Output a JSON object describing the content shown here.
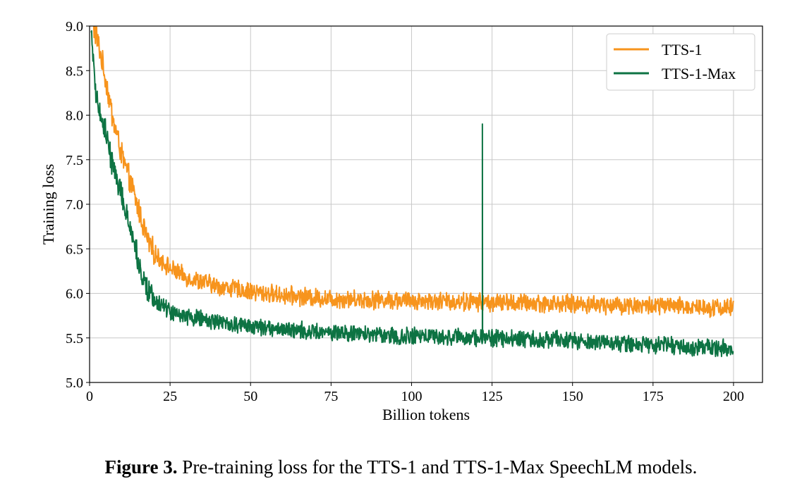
{
  "caption": {
    "label": "Figure 3.",
    "text": "Pre-training loss for the TTS-1 and TTS-1-Max SpeechLM models."
  },
  "chart_data": {
    "type": "line",
    "xlabel": "Billion tokens",
    "ylabel": "Training loss",
    "xlim": [
      0,
      209
    ],
    "ylim": [
      5.0,
      9.0
    ],
    "xticks": [
      0,
      25,
      50,
      75,
      100,
      125,
      150,
      175,
      200
    ],
    "yticks": [
      5.0,
      5.5,
      6.0,
      6.5,
      7.0,
      7.5,
      8.0,
      8.5,
      9.0
    ],
    "xtick_labels": [
      "0",
      "25",
      "50",
      "75",
      "100",
      "125",
      "150",
      "175",
      "200"
    ],
    "ytick_labels": [
      "5.0",
      "5.5",
      "6.0",
      "6.5",
      "7.0",
      "7.5",
      "8.0",
      "8.5",
      "9.0"
    ],
    "grid": true,
    "legend_position": "top-right",
    "series": [
      {
        "name": "TTS-1",
        "color": "#f7941d",
        "noise": 0.09,
        "x": [
          1,
          2,
          3,
          5,
          7,
          10,
          13,
          16,
          18,
          20,
          25,
          30,
          40,
          50,
          60,
          75,
          100,
          125,
          150,
          175,
          200
        ],
        "y": [
          9.0,
          8.9,
          8.75,
          8.4,
          8.0,
          7.55,
          7.2,
          6.85,
          6.6,
          6.45,
          6.28,
          6.18,
          6.08,
          6.02,
          5.98,
          5.94,
          5.92,
          5.9,
          5.88,
          5.86,
          5.84
        ],
        "spikes": []
      },
      {
        "name": "TTS-1-Max",
        "color": "#0d7343",
        "noise": 0.085,
        "x": [
          0.5,
          1,
          2,
          3,
          5,
          7,
          10,
          13,
          16,
          18,
          20,
          25,
          30,
          40,
          50,
          60,
          75,
          100,
          125,
          150,
          175,
          200
        ],
        "y": [
          9.0,
          8.6,
          8.25,
          8.05,
          7.8,
          7.45,
          7.1,
          6.7,
          6.25,
          6.05,
          5.92,
          5.8,
          5.74,
          5.67,
          5.63,
          5.6,
          5.56,
          5.52,
          5.5,
          5.47,
          5.42,
          5.38
        ],
        "spikes": [
          {
            "x": 122,
            "y": 7.9
          }
        ]
      }
    ]
  }
}
